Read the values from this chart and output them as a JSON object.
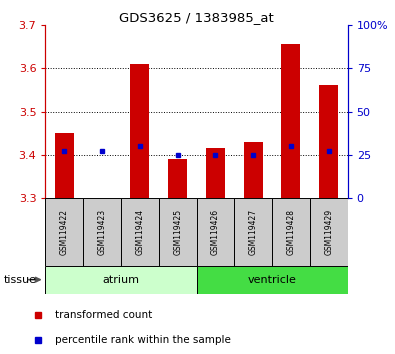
{
  "title": "GDS3625 / 1383985_at",
  "samples": [
    "GSM119422",
    "GSM119423",
    "GSM119424",
    "GSM119425",
    "GSM119426",
    "GSM119427",
    "GSM119428",
    "GSM119429"
  ],
  "bar_tops": [
    3.45,
    3.3,
    3.61,
    3.39,
    3.415,
    3.43,
    3.655,
    3.56
  ],
  "bar_base": 3.3,
  "blue_values": [
    3.41,
    3.41,
    3.42,
    3.4,
    3.4,
    3.4,
    3.42,
    3.41
  ],
  "ylim_left": [
    3.3,
    3.7
  ],
  "ylim_right": [
    0,
    100
  ],
  "yticks_left": [
    3.3,
    3.4,
    3.5,
    3.6,
    3.7
  ],
  "yticks_right": [
    0,
    25,
    50,
    75,
    100
  ],
  "ytick_labels_right": [
    "0",
    "25",
    "50",
    "75",
    "100%"
  ],
  "grid_lines": [
    3.4,
    3.5,
    3.6
  ],
  "tissue_groups": [
    {
      "label": "atrium",
      "start": 0,
      "end": 4,
      "color": "#ccffcc"
    },
    {
      "label": "ventricle",
      "start": 4,
      "end": 8,
      "color": "#44dd44"
    }
  ],
  "bar_color": "#cc0000",
  "blue_color": "#0000cc",
  "left_tick_color": "#cc0000",
  "right_tick_color": "#0000cc",
  "background_samples": "#cccccc",
  "legend_items": [
    {
      "color": "#cc0000",
      "label": "transformed count"
    },
    {
      "color": "#0000cc",
      "label": "percentile rank within the sample"
    }
  ],
  "tissue_label": "tissue"
}
